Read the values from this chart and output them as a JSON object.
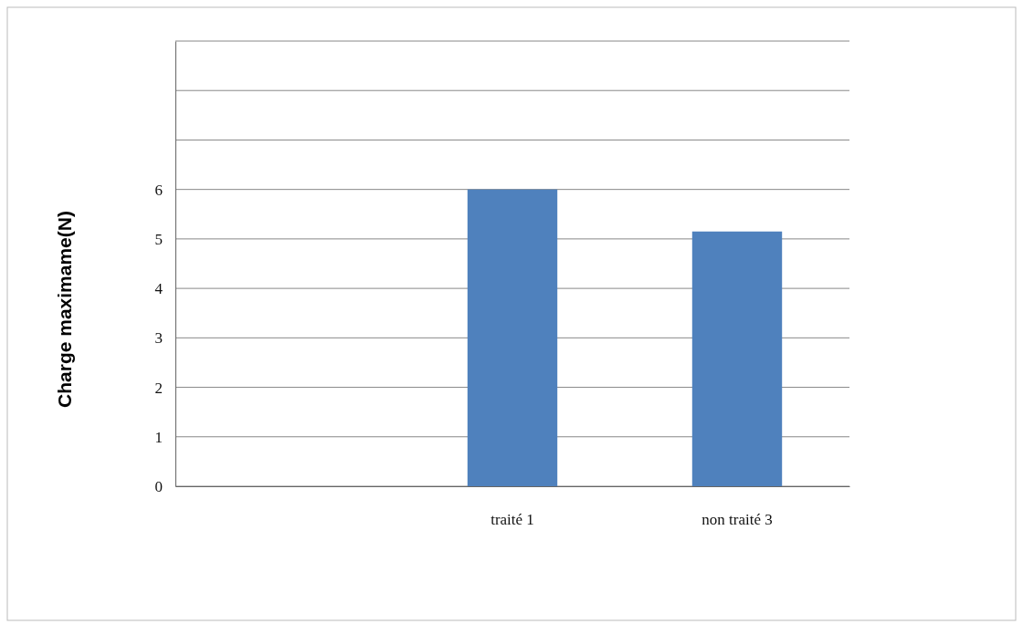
{
  "chart_data": {
    "type": "bar",
    "ylabel": "Charge maximame(N)",
    "categories": [
      null,
      "traité  1",
      "non traité 3"
    ],
    "values": [
      null,
      6,
      5.15
    ],
    "color": "#4f81bd",
    "ylim": [
      0,
      9
    ],
    "yticks": [
      0,
      1,
      2,
      3,
      4,
      5,
      6,
      {
        "value": 7,
        "label": null
      },
      {
        "value": 8,
        "label": null
      },
      {
        "value": 9,
        "label": null
      }
    ],
    "grid": "y"
  }
}
